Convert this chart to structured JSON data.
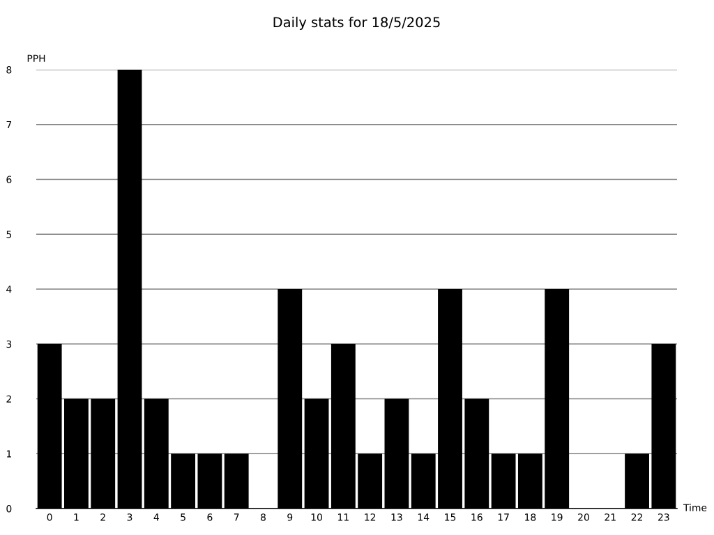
{
  "chart_data": {
    "type": "bar",
    "title": "Daily stats for 18/5/2025",
    "xlabel": "Time",
    "ylabel": "PPH",
    "categories": [
      "0",
      "1",
      "2",
      "3",
      "4",
      "5",
      "6",
      "7",
      "8",
      "9",
      "10",
      "11",
      "12",
      "13",
      "14",
      "15",
      "16",
      "17",
      "18",
      "19",
      "20",
      "21",
      "22",
      "23"
    ],
    "values": [
      3,
      2,
      2,
      8,
      2,
      1,
      1,
      1,
      0,
      4,
      2,
      3,
      1,
      2,
      1,
      4,
      2,
      1,
      1,
      4,
      0,
      0,
      1,
      3
    ],
    "color": "#000000",
    "ylim": [
      0,
      8
    ],
    "yticks": [
      0,
      1,
      2,
      3,
      4,
      5,
      6,
      7,
      8
    ],
    "grid": "y"
  }
}
